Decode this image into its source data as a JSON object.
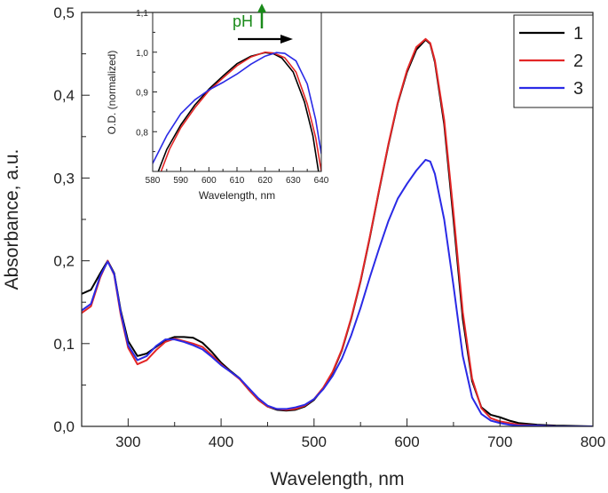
{
  "chart_data": [
    {
      "id": "main",
      "type": "line",
      "title": "",
      "xlabel": "Wavelength, nm",
      "ylabel": "Absorbance, a.u.",
      "xlim": [
        250,
        800
      ],
      "ylim": [
        0,
        0.5
      ],
      "x_ticks": [
        300,
        400,
        500,
        600,
        700,
        800
      ],
      "x_tick_labels": [
        "300",
        "400",
        "500",
        "600",
        "700",
        "800"
      ],
      "y_ticks": [
        0,
        0.1,
        0.2,
        0.3,
        0.4,
        0.5
      ],
      "y_tick_labels": [
        "0,0",
        "0,1",
        "0,2",
        "0,3",
        "0,4",
        "0,5"
      ],
      "grid": false,
      "legend": {
        "placement": "top-right",
        "entries": [
          {
            "label": "1",
            "color": "#000000"
          },
          {
            "label": "2",
            "color": "#e32626"
          },
          {
            "label": "3",
            "color": "#2a2ae6"
          }
        ]
      },
      "series": [
        {
          "name": "1",
          "color": "#000000",
          "points": [
            [
              250,
              0.16
            ],
            [
              260,
              0.165
            ],
            [
              270,
              0.185
            ],
            [
              278,
              0.2
            ],
            [
              285,
              0.185
            ],
            [
              292,
              0.14
            ],
            [
              300,
              0.103
            ],
            [
              310,
              0.085
            ],
            [
              320,
              0.088
            ],
            [
              330,
              0.096
            ],
            [
              340,
              0.104
            ],
            [
              350,
              0.108
            ],
            [
              360,
              0.108
            ],
            [
              370,
              0.107
            ],
            [
              380,
              0.101
            ],
            [
              390,
              0.09
            ],
            [
              400,
              0.077
            ],
            [
              410,
              0.067
            ],
            [
              420,
              0.058
            ],
            [
              430,
              0.044
            ],
            [
              440,
              0.032
            ],
            [
              450,
              0.024
            ],
            [
              460,
              0.02
            ],
            [
              470,
              0.019
            ],
            [
              480,
              0.02
            ],
            [
              490,
              0.024
            ],
            [
              500,
              0.032
            ],
            [
              510,
              0.046
            ],
            [
              520,
              0.065
            ],
            [
              530,
              0.092
            ],
            [
              540,
              0.13
            ],
            [
              550,
              0.175
            ],
            [
              560,
              0.228
            ],
            [
              570,
              0.285
            ],
            [
              580,
              0.34
            ],
            [
              590,
              0.39
            ],
            [
              600,
              0.428
            ],
            [
              610,
              0.455
            ],
            [
              620,
              0.467
            ],
            [
              625,
              0.462
            ],
            [
              630,
              0.44
            ],
            [
              640,
              0.365
            ],
            [
              650,
              0.25
            ],
            [
              660,
              0.13
            ],
            [
              670,
              0.055
            ],
            [
              680,
              0.023
            ],
            [
              690,
              0.014
            ],
            [
              700,
              0.011
            ],
            [
              710,
              0.007
            ],
            [
              720,
              0.004
            ],
            [
              740,
              0.002
            ],
            [
              760,
              0.001
            ],
            [
              800,
              0.0
            ]
          ]
        },
        {
          "name": "2",
          "color": "#e32626",
          "points": [
            [
              250,
              0.137
            ],
            [
              260,
              0.145
            ],
            [
              270,
              0.18
            ],
            [
              278,
              0.2
            ],
            [
              285,
              0.183
            ],
            [
              292,
              0.135
            ],
            [
              300,
              0.095
            ],
            [
              310,
              0.075
            ],
            [
              320,
              0.08
            ],
            [
              330,
              0.092
            ],
            [
              340,
              0.102
            ],
            [
              350,
              0.106
            ],
            [
              360,
              0.103
            ],
            [
              370,
              0.1
            ],
            [
              380,
              0.096
            ],
            [
              390,
              0.086
            ],
            [
              400,
              0.075
            ],
            [
              410,
              0.066
            ],
            [
              420,
              0.057
            ],
            [
              430,
              0.044
            ],
            [
              440,
              0.032
            ],
            [
              450,
              0.024
            ],
            [
              460,
              0.021
            ],
            [
              470,
              0.02
            ],
            [
              480,
              0.021
            ],
            [
              490,
              0.025
            ],
            [
              500,
              0.033
            ],
            [
              510,
              0.047
            ],
            [
              520,
              0.066
            ],
            [
              530,
              0.093
            ],
            [
              540,
              0.131
            ],
            [
              550,
              0.176
            ],
            [
              560,
              0.229
            ],
            [
              570,
              0.286
            ],
            [
              580,
              0.341
            ],
            [
              590,
              0.391
            ],
            [
              600,
              0.43
            ],
            [
              610,
              0.458
            ],
            [
              620,
              0.468
            ],
            [
              625,
              0.463
            ],
            [
              630,
              0.442
            ],
            [
              640,
              0.37
            ],
            [
              650,
              0.258
            ],
            [
              660,
              0.138
            ],
            [
              670,
              0.058
            ],
            [
              680,
              0.022
            ],
            [
              690,
              0.01
            ],
            [
              700,
              0.006
            ],
            [
              710,
              0.004
            ],
            [
              720,
              0.002
            ],
            [
              740,
              0.001
            ],
            [
              760,
              0.0
            ],
            [
              800,
              0.0
            ]
          ]
        },
        {
          "name": "3",
          "color": "#2a2ae6",
          "points": [
            [
              250,
              0.14
            ],
            [
              260,
              0.148
            ],
            [
              270,
              0.182
            ],
            [
              278,
              0.199
            ],
            [
              285,
              0.184
            ],
            [
              292,
              0.138
            ],
            [
              300,
              0.098
            ],
            [
              310,
              0.08
            ],
            [
              320,
              0.085
            ],
            [
              330,
              0.097
            ],
            [
              340,
              0.105
            ],
            [
              350,
              0.105
            ],
            [
              360,
              0.102
            ],
            [
              370,
              0.098
            ],
            [
              380,
              0.093
            ],
            [
              390,
              0.084
            ],
            [
              400,
              0.074
            ],
            [
              410,
              0.066
            ],
            [
              420,
              0.058
            ],
            [
              430,
              0.046
            ],
            [
              440,
              0.034
            ],
            [
              450,
              0.025
            ],
            [
              460,
              0.021
            ],
            [
              470,
              0.021
            ],
            [
              480,
              0.023
            ],
            [
              490,
              0.026
            ],
            [
              500,
              0.033
            ],
            [
              510,
              0.045
            ],
            [
              520,
              0.061
            ],
            [
              530,
              0.082
            ],
            [
              540,
              0.11
            ],
            [
              550,
              0.143
            ],
            [
              560,
              0.18
            ],
            [
              570,
              0.215
            ],
            [
              580,
              0.248
            ],
            [
              590,
              0.275
            ],
            [
              600,
              0.293
            ],
            [
              610,
              0.309
            ],
            [
              620,
              0.322
            ],
            [
              625,
              0.32
            ],
            [
              630,
              0.305
            ],
            [
              640,
              0.25
            ],
            [
              650,
              0.17
            ],
            [
              660,
              0.085
            ],
            [
              670,
              0.035
            ],
            [
              680,
              0.015
            ],
            [
              690,
              0.007
            ],
            [
              700,
              0.004
            ],
            [
              710,
              0.002
            ],
            [
              720,
              0.001
            ],
            [
              740,
              0.001
            ],
            [
              760,
              0.0
            ],
            [
              800,
              0.0
            ]
          ]
        }
      ]
    },
    {
      "id": "inset",
      "type": "line",
      "title": "",
      "xlabel": "Wavelength, nm",
      "ylabel": "O.D. (normalized)",
      "xlim": [
        580,
        640
      ],
      "ylim": [
        0.7,
        1.1
      ],
      "x_ticks": [
        580,
        590,
        600,
        610,
        620,
        630,
        640
      ],
      "x_tick_labels": [
        "580",
        "590",
        "600",
        "610",
        "620",
        "630",
        "640"
      ],
      "y_ticks": [
        0.8,
        0.9,
        1.0,
        1.1
      ],
      "y_tick_labels": [
        "0,8",
        "0,9",
        "1,0",
        "1,1"
      ],
      "grid": false,
      "annotation": {
        "text": "pH",
        "color": "#1a8a1a",
        "note": "arrow up next to pH; horizontal arrow pointing right below"
      },
      "series": [
        {
          "name": "1",
          "color": "#000000",
          "points": [
            [
              582,
              0.7
            ],
            [
              585,
              0.755
            ],
            [
              590,
              0.817
            ],
            [
              595,
              0.867
            ],
            [
              600,
              0.907
            ],
            [
              605,
              0.94
            ],
            [
              610,
              0.971
            ],
            [
              615,
              0.99
            ],
            [
              620,
              0.999
            ],
            [
              623,
              0.996
            ],
            [
              626,
              0.985
            ],
            [
              630,
              0.95
            ],
            [
              634,
              0.875
            ],
            [
              637,
              0.79
            ],
            [
              639,
              0.7
            ]
          ]
        },
        {
          "name": "2",
          "color": "#e32626",
          "points": [
            [
              583,
              0.7
            ],
            [
              586,
              0.756
            ],
            [
              590,
              0.81
            ],
            [
              595,
              0.86
            ],
            [
              600,
              0.903
            ],
            [
              605,
              0.935
            ],
            [
              610,
              0.966
            ],
            [
              615,
              0.988
            ],
            [
              620,
              1.0
            ],
            [
              623,
              0.998
            ],
            [
              627,
              0.986
            ],
            [
              631,
              0.95
            ],
            [
              635,
              0.87
            ],
            [
              638,
              0.785
            ],
            [
              640,
              0.7
            ]
          ]
        },
        {
          "name": "3",
          "color": "#2a2ae6",
          "points": [
            [
              580,
              0.72
            ],
            [
              585,
              0.79
            ],
            [
              590,
              0.845
            ],
            [
              595,
              0.88
            ],
            [
              600,
              0.905
            ],
            [
              605,
              0.924
            ],
            [
              610,
              0.945
            ],
            [
              615,
              0.97
            ],
            [
              620,
              0.99
            ],
            [
              624,
              0.999
            ],
            [
              627,
              0.997
            ],
            [
              631,
              0.978
            ],
            [
              635,
              0.92
            ],
            [
              638,
              0.83
            ],
            [
              640,
              0.745
            ]
          ]
        }
      ]
    }
  ]
}
